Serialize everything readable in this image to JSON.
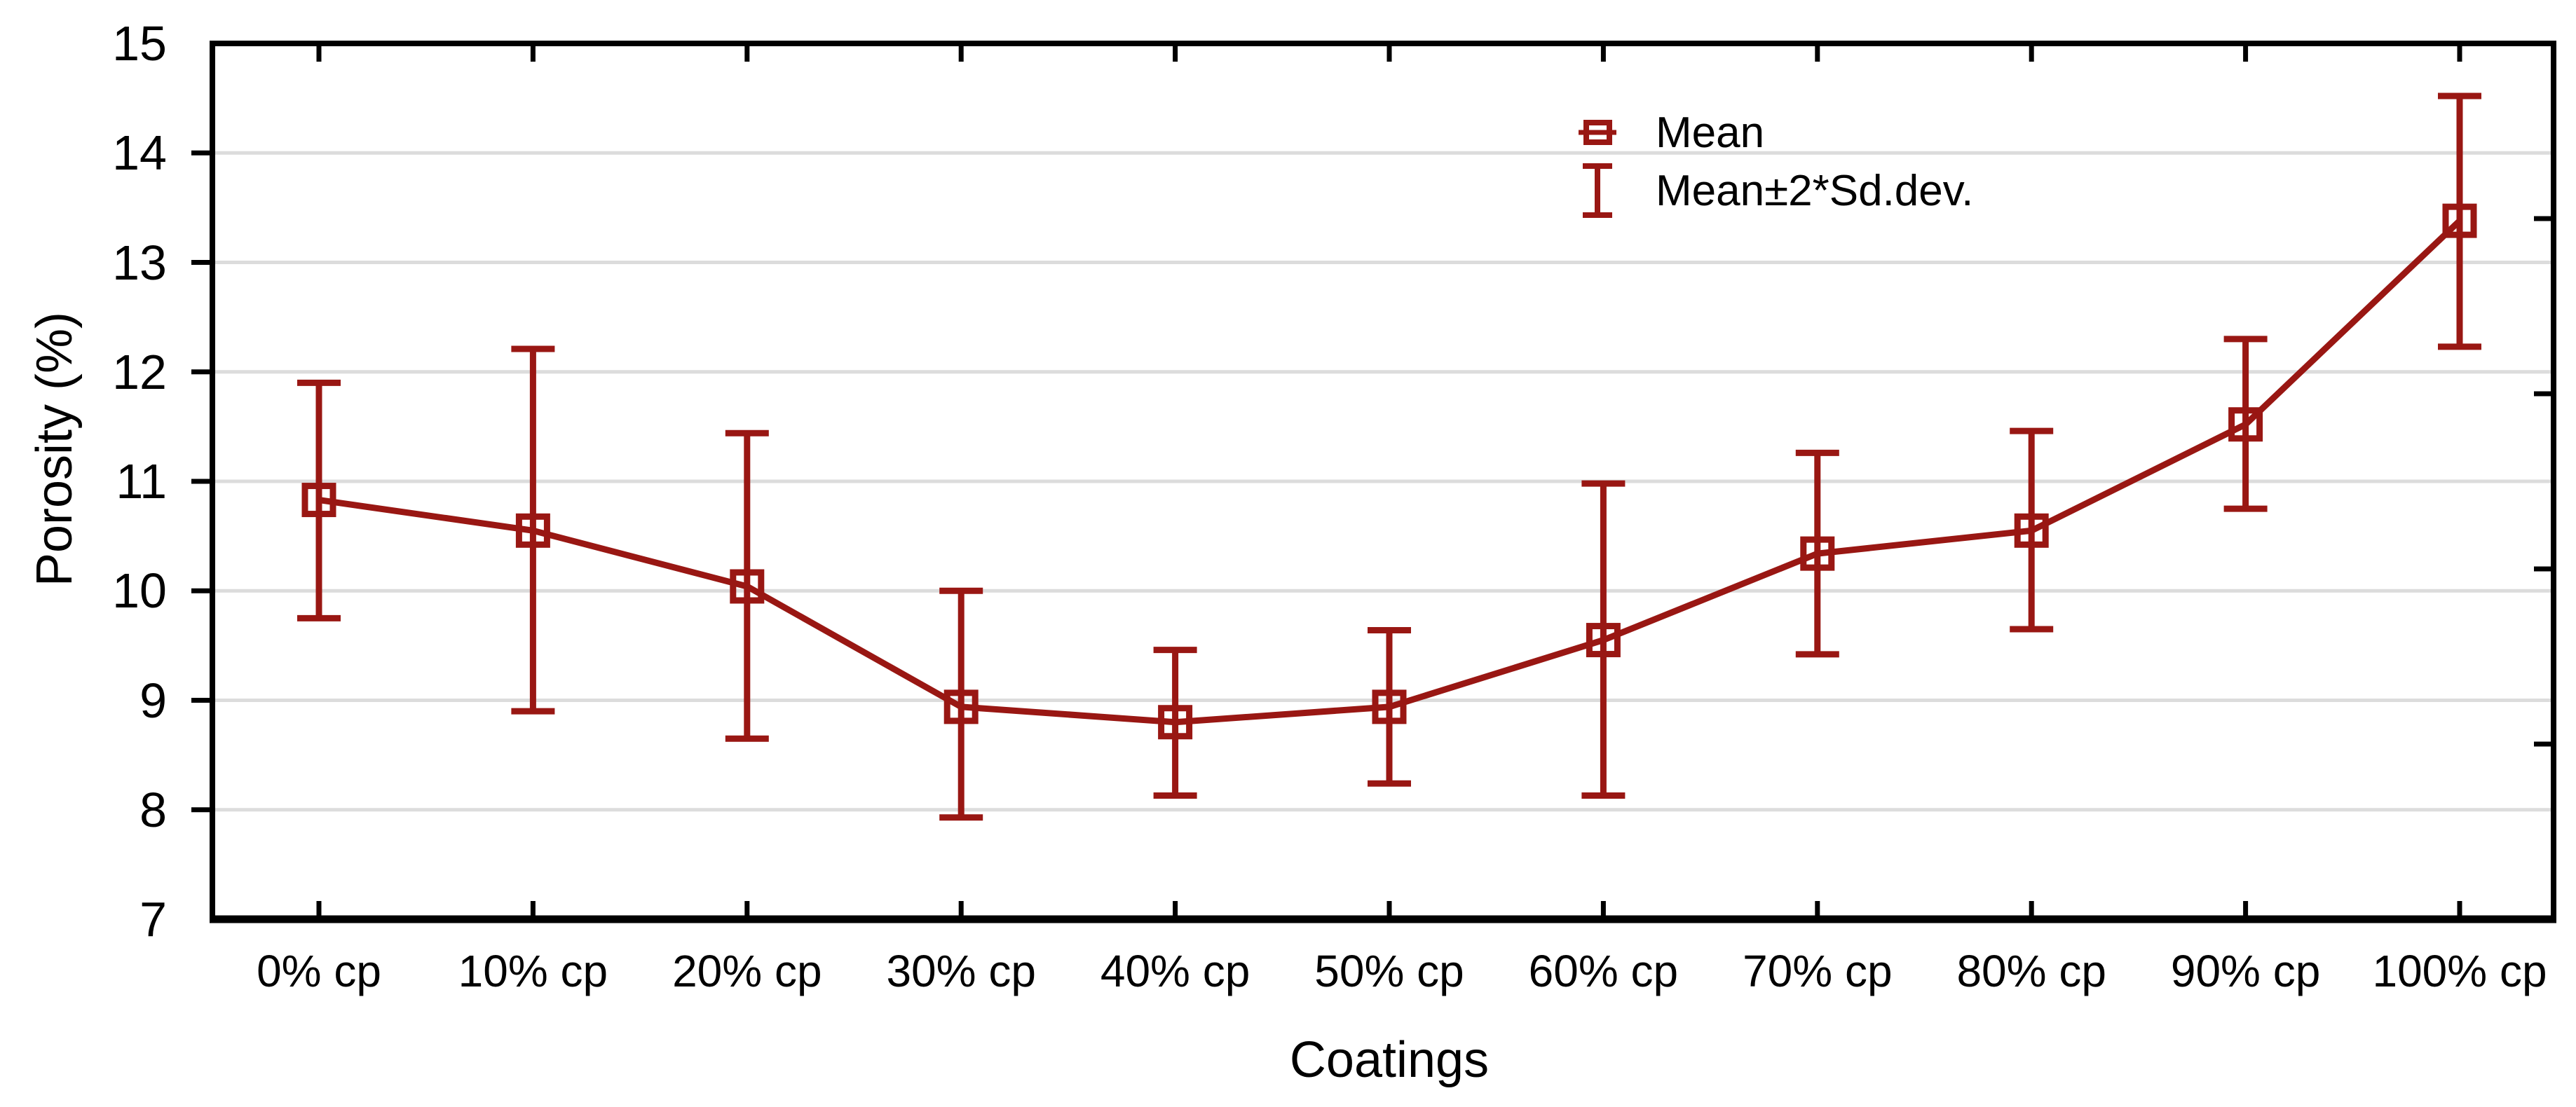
{
  "chart_data": {
    "type": "line",
    "title": "",
    "xlabel": "Coatings",
    "ylabel": "Porosity (%)",
    "categories": [
      "0% cp",
      "10% cp",
      "20% cp",
      "30% cp",
      "40% cp",
      "50% cp",
      "60% cp",
      "70% cp",
      "80% cp",
      "90% cp",
      "100% cp"
    ],
    "series": [
      {
        "name": "Mean",
        "values": [
          10.83,
          10.55,
          10.04,
          8.94,
          8.8,
          8.94,
          9.55,
          10.34,
          10.55,
          11.52,
          13.38
        ],
        "upper": [
          11.9,
          12.21,
          11.44,
          10.0,
          9.46,
          9.64,
          10.98,
          11.26,
          11.46,
          12.3,
          14.52
        ],
        "lower": [
          9.75,
          8.9,
          8.65,
          7.93,
          8.13,
          8.24,
          8.13,
          9.42,
          9.65,
          10.75,
          12.23
        ]
      }
    ],
    "error_bar_definition": "Mean±2*Sd.dev.",
    "legend": [
      {
        "label": "Mean",
        "glyph": "open-square-marker"
      },
      {
        "label": "Mean±2*Sd.dev.",
        "glyph": "error-bar-whisker"
      }
    ],
    "legend_position": "top-right-inside",
    "yticks": [
      15,
      14,
      13,
      12,
      11,
      10,
      9,
      8,
      7
    ],
    "ylim": [
      7,
      15
    ],
    "grid": "horizontal-only",
    "marker": "open-square",
    "colors": {
      "series": "#991713",
      "grid": "#dcdcdc",
      "axis": "#000000",
      "text": "#000000",
      "background": "#ffffff"
    }
  }
}
